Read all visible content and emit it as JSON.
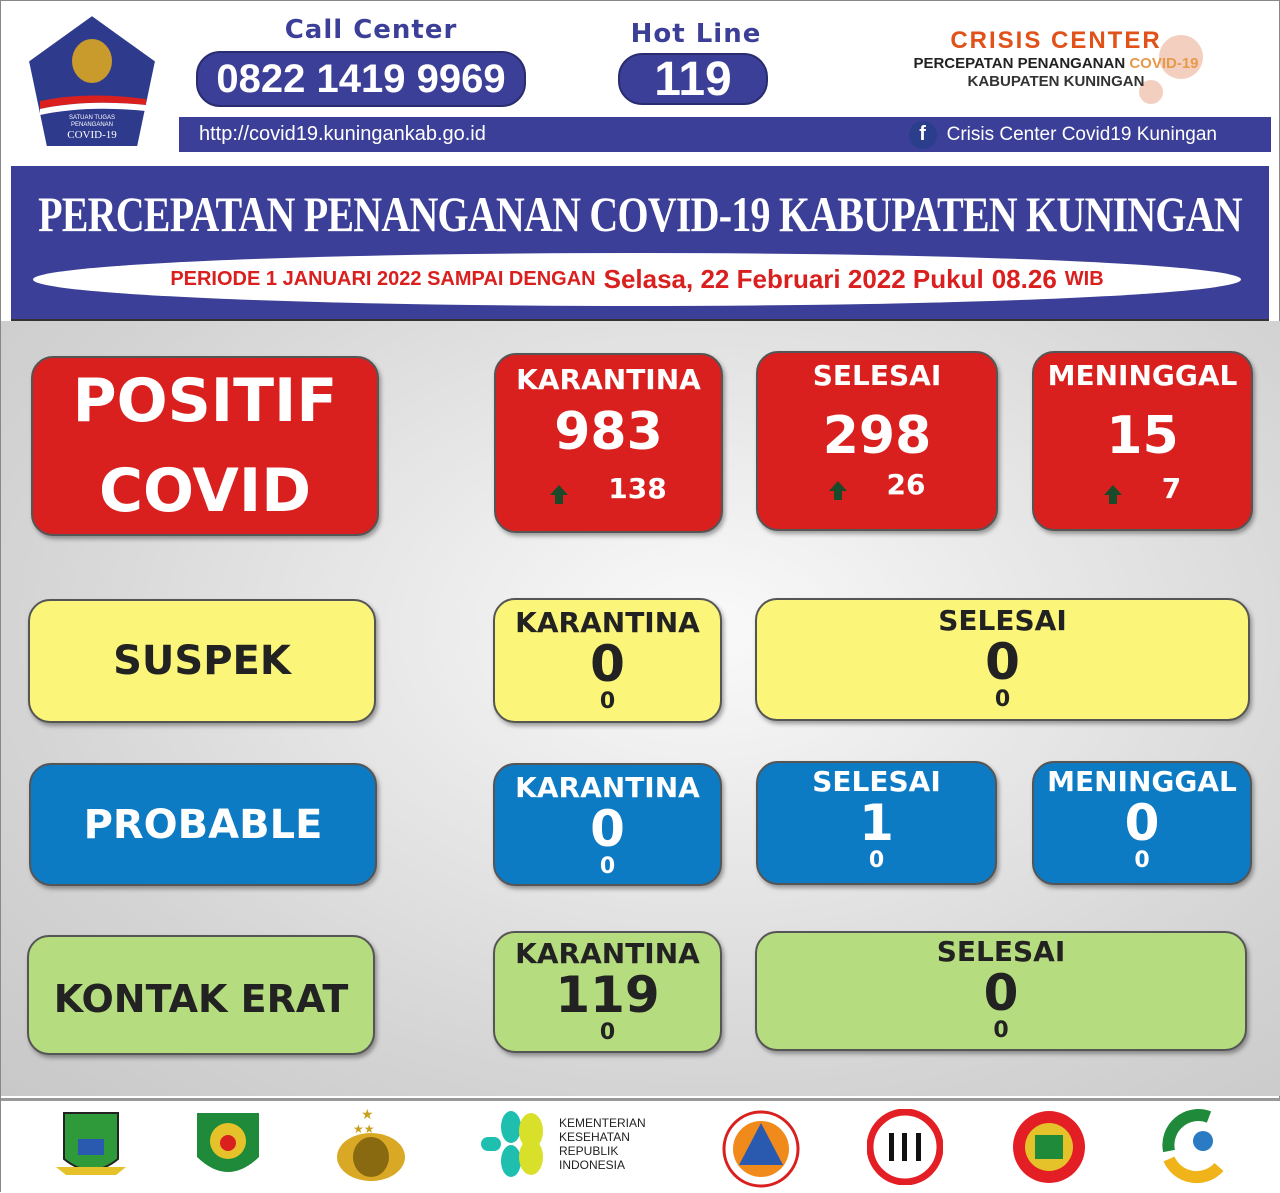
{
  "header": {
    "logo_text": [
      "SATUAN TUGAS",
      "PENANGANAN",
      "COVID-19"
    ],
    "call_center_label": "Call Center",
    "call_center_number": "0822 1419 9969",
    "hotline_label": "Hot Line",
    "hotline_number": "119",
    "crisis_title": "CRISIS CENTER",
    "crisis_sub1": "PERCEPATAN PENANGANAN",
    "crisis_sub1_accent": "COVID-19",
    "crisis_sub2": "KABUPATEN KUNINGAN",
    "website": "http://covid19.kuningankab.go.id",
    "facebook": "Crisis Center Covid19 Kuningan"
  },
  "banner": {
    "title": "PERCEPATAN PENANGANAN COVID-19 KABUPATEN KUNINGAN",
    "period_prefix": "PERIODE 1 JANUARI 2022 SAMPAI DENGAN",
    "period_date": "Selasa, 22 Februari 2022 Pukul",
    "period_time": "08.26",
    "period_tz": "WIB"
  },
  "colors": {
    "positif": "#d9201f",
    "suspek": "#fbf57a",
    "probable": "#0d7ac4",
    "kontak_erat": "#b5dc7f",
    "brand": "#3c3f97"
  },
  "positif": {
    "label1": "POSITIF",
    "label2": "COVID",
    "karantina": {
      "label": "KARANTINA",
      "value": "983",
      "delta": "138"
    },
    "selesai": {
      "label": "SELESAI",
      "value": "298",
      "delta": "26"
    },
    "meninggal": {
      "label": "MENINGGAL",
      "value": "15",
      "delta": "7"
    }
  },
  "suspek": {
    "label": "SUSPEK",
    "karantina": {
      "label": "KARANTINA",
      "value": "0",
      "delta": "0"
    },
    "selesai": {
      "label": "SELESAI",
      "value": "0",
      "delta": "0"
    }
  },
  "probable": {
    "label": "PROBABLE",
    "karantina": {
      "label": "KARANTINA",
      "value": "0",
      "delta": "0"
    },
    "selesai": {
      "label": "SELESAI",
      "value": "1",
      "delta": "0"
    },
    "meninggal": {
      "label": "MENINGGAL",
      "value": "0",
      "delta": "0"
    }
  },
  "kontak_erat": {
    "label": "KONTAK ERAT",
    "karantina": {
      "label": "KARANTINA",
      "value": "119",
      "delta": "0"
    },
    "selesai": {
      "label": "SELESAI",
      "value": "0",
      "delta": "0"
    }
  },
  "footer": {
    "kemenkes": [
      "KEMENTERIAN",
      "KESEHATAN",
      "REPUBLIK",
      "INDONESIA"
    ]
  }
}
